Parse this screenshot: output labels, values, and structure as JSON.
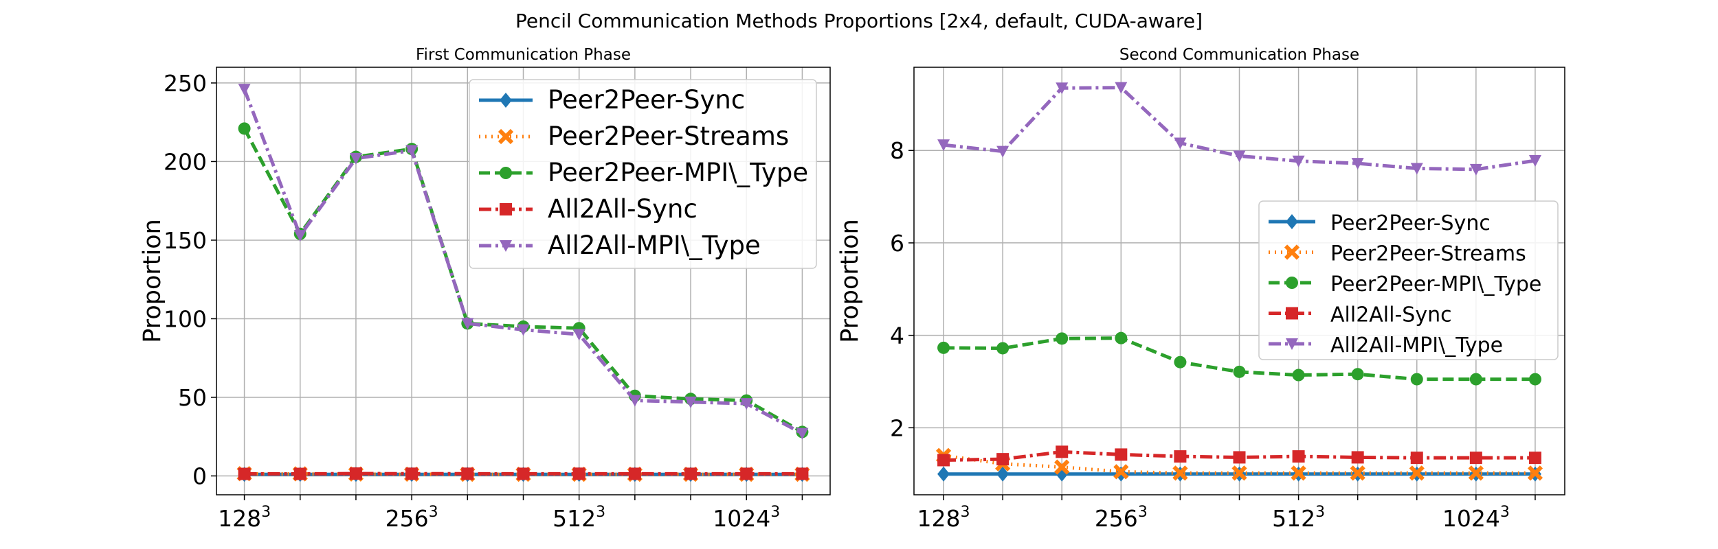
{
  "title": "Pencil Communication Methods Proportions [2x4, default, CUDA-aware]",
  "colors": {
    "Peer2Peer-Sync": "#1f77b4",
    "Peer2Peer-Streams": "#ff7f0e",
    "Peer2Peer-MPI\\_Type": "#2ca02c",
    "All2All-Sync": "#d62728",
    "All2All-MPI\\_Type": "#9467bd"
  },
  "chart_data": [
    {
      "type": "line",
      "title": "First Communication Phase",
      "xlabel": "",
      "ylabel": "Proportion",
      "x_tick_labels": [
        {
          "base": "128",
          "exp": "3",
          "at": 0
        },
        {
          "base": "256",
          "exp": "3",
          "at": 3
        },
        {
          "base": "512",
          "exp": "3",
          "at": 6
        },
        {
          "base": "1024",
          "exp": "3",
          "at": 9
        }
      ],
      "xlim": [
        -0.5,
        10.5
      ],
      "ylim": [
        -12,
        260
      ],
      "yticks": [
        0,
        50,
        100,
        150,
        200,
        250
      ],
      "grid": true,
      "legend_position": "top-right",
      "series": [
        {
          "name": "Peer2Peer-Sync",
          "style": "solid",
          "marker": "diamond",
          "values": [
            1,
            1,
            1,
            1,
            1,
            1,
            1,
            1,
            1,
            1,
            1
          ]
        },
        {
          "name": "Peer2Peer-Streams",
          "style": "dotted",
          "marker": "x",
          "values": [
            1.4,
            1.3,
            1.2,
            1.1,
            1.05,
            1.05,
            1.05,
            1.05,
            1.05,
            1.05,
            1.05
          ]
        },
        {
          "name": "Peer2Peer-MPI\\_Type",
          "style": "dashed",
          "marker": "circle",
          "values": [
            221,
            154,
            203,
            208,
            97,
            95,
            94,
            51,
            49,
            48,
            28
          ]
        },
        {
          "name": "All2All-Sync",
          "style": "dashdot",
          "marker": "square",
          "values": [
            1.3,
            1.3,
            1.5,
            1.4,
            1.4,
            1.35,
            1.4,
            1.35,
            1.35,
            1.35,
            1.35
          ]
        },
        {
          "name": "All2All-MPI\\_Type",
          "style": "dashdot",
          "marker": "triangle-down",
          "values": [
            246,
            153,
            202,
            207,
            97,
            93,
            90,
            48,
            47,
            46,
            27
          ]
        }
      ]
    },
    {
      "type": "line",
      "title": "Second Communication Phase",
      "xlabel": "",
      "ylabel": "Proportion",
      "x_tick_labels": [
        {
          "base": "128",
          "exp": "3",
          "at": 0
        },
        {
          "base": "256",
          "exp": "3",
          "at": 3
        },
        {
          "base": "512",
          "exp": "3",
          "at": 6
        },
        {
          "base": "1024",
          "exp": "3",
          "at": 9
        }
      ],
      "xlim": [
        -0.5,
        10.5
      ],
      "ylim": [
        0.55,
        9.8
      ],
      "yticks": [
        2,
        4,
        6,
        8
      ],
      "grid": true,
      "legend_position": "center-right",
      "series": [
        {
          "name": "Peer2Peer-Sync",
          "style": "solid",
          "marker": "diamond",
          "values": [
            1,
            1,
            1,
            1,
            1,
            1,
            1,
            1,
            1,
            1,
            1
          ]
        },
        {
          "name": "Peer2Peer-Streams",
          "style": "dotted",
          "marker": "x",
          "values": [
            1.4,
            1.22,
            1.15,
            1.05,
            1.02,
            1.02,
            1.02,
            1.02,
            1.02,
            1.02,
            1.02
          ]
        },
        {
          "name": "Peer2Peer-MPI\\_Type",
          "style": "dashed",
          "marker": "circle",
          "values": [
            3.73,
            3.72,
            3.93,
            3.94,
            3.42,
            3.21,
            3.14,
            3.16,
            3.05,
            3.05,
            3.05
          ]
        },
        {
          "name": "All2All-Sync",
          "style": "dashdot",
          "marker": "square",
          "values": [
            1.3,
            1.32,
            1.48,
            1.42,
            1.38,
            1.36,
            1.38,
            1.36,
            1.35,
            1.35,
            1.35
          ]
        },
        {
          "name": "All2All-MPI\\_Type",
          "style": "dashdot",
          "marker": "triangle-down",
          "values": [
            8.12,
            7.98,
            9.35,
            9.36,
            8.16,
            7.88,
            7.77,
            7.72,
            7.61,
            7.59,
            7.78
          ]
        }
      ]
    }
  ]
}
